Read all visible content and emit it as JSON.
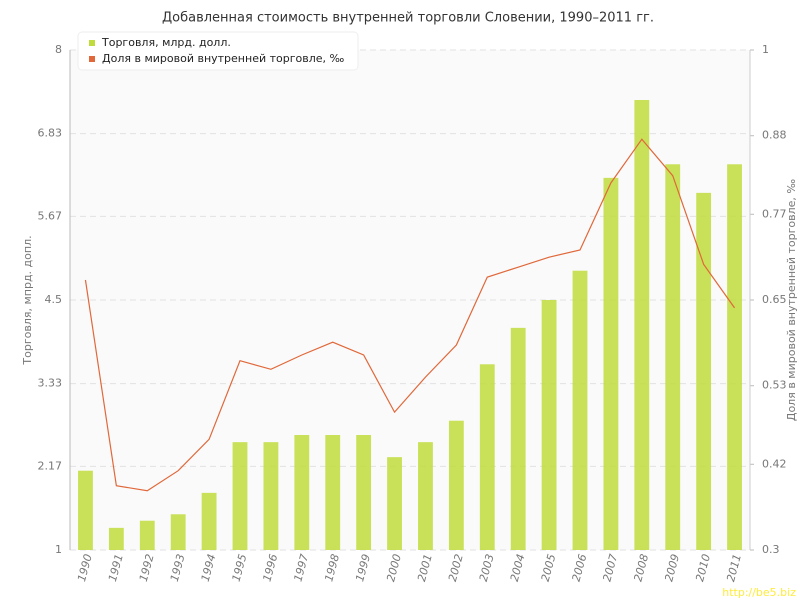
{
  "chart_data": {
    "type": "bar_line",
    "title": "Добавленная стоимость внутренней торговли Словении, 1990–2011 гг.",
    "y_label": "Торговля, мпрд. допл.",
    "y2_label": "Доля в мировой внутренней торговле, ‰",
    "watermark": "http://be5.biz",
    "categories": [
      "1990",
      "1991",
      "1992",
      "1993",
      "1994",
      "1995",
      "1996",
      "1997",
      "1998",
      "1999",
      "2000",
      "2001",
      "2002",
      "2003",
      "2004",
      "2005",
      "2006",
      "2007",
      "2008",
      "2009",
      "2010",
      "2011"
    ],
    "series": [
      {
        "name": "Торговля, млрд. долл.",
        "color": "#bfdc3c",
        "kind": "bar",
        "values": [
          2.11,
          1.31,
          1.41,
          1.5,
          1.8,
          2.51,
          2.51,
          2.61,
          2.61,
          2.61,
          2.3,
          2.51,
          2.81,
          3.6,
          4.11,
          4.5,
          4.91,
          6.21,
          7.3,
          6.4,
          6.0,
          6.4
        ]
      },
      {
        "name": "Доля в мировой внутренней торговле, ‰",
        "color": "#e0683a",
        "kind": "line",
        "axis": "y2",
        "values": [
          0.678,
          0.39,
          0.383,
          0.411,
          0.455,
          0.565,
          0.553,
          0.573,
          0.591,
          0.573,
          0.493,
          0.542,
          0.587,
          0.682,
          0.696,
          0.71,
          0.72,
          0.814,
          0.875,
          0.824,
          0.7,
          0.639
        ]
      }
    ],
    "ylim": [
      1,
      8
    ],
    "yticks": [
      1,
      2.17,
      3.33,
      4.5,
      5.67,
      6.83,
      8
    ],
    "y2lim": [
      0.3,
      1
    ],
    "y2ticks": [
      0.3,
      0.42,
      0.53,
      0.65,
      0.77,
      0.88,
      1
    ],
    "grid": true
  }
}
